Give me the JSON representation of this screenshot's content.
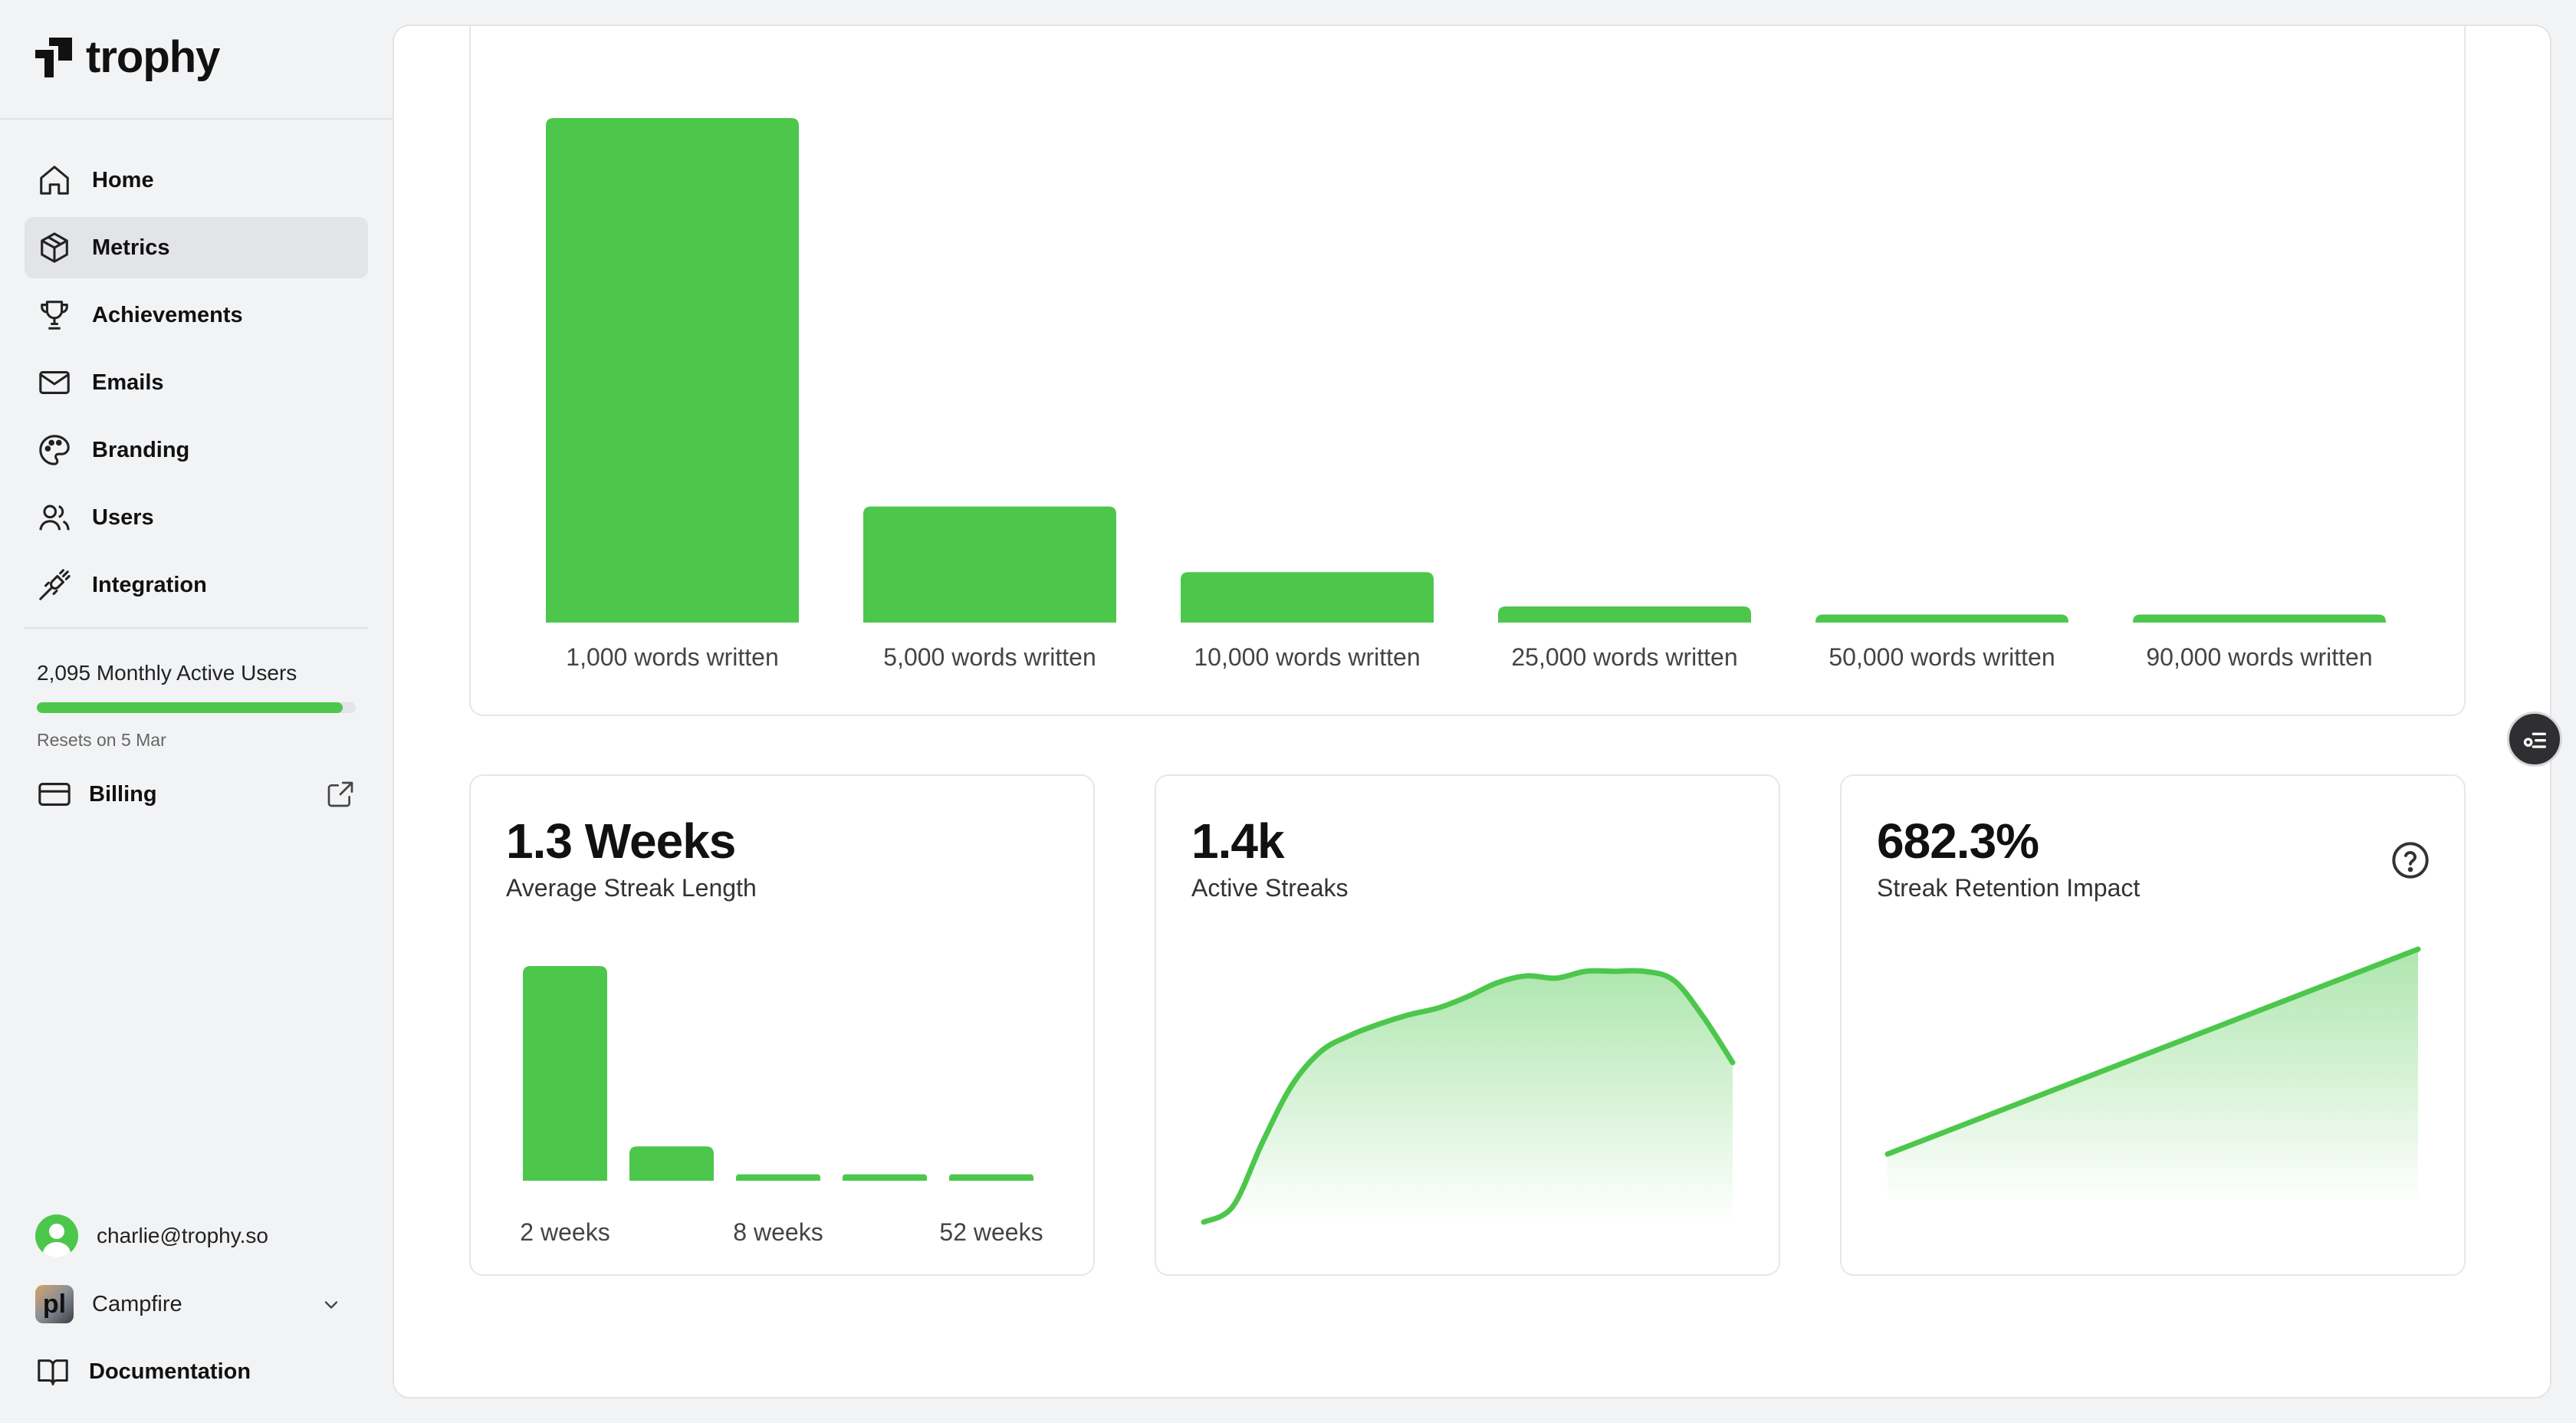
{
  "app": {
    "name": "trophy"
  },
  "sidebar": {
    "items": [
      {
        "label": "Home",
        "icon": "home-icon"
      },
      {
        "label": "Metrics",
        "icon": "cube-icon",
        "active": true
      },
      {
        "label": "Achievements",
        "icon": "trophy-icon"
      },
      {
        "label": "Emails",
        "icon": "mail-icon"
      },
      {
        "label": "Branding",
        "icon": "palette-icon"
      },
      {
        "label": "Users",
        "icon": "users-icon"
      },
      {
        "label": "Integration",
        "icon": "plug-icon"
      }
    ],
    "usage": {
      "label": "2,095 Monthly Active Users",
      "progress_fraction": 0.96,
      "resets": "Resets on 5 Mar"
    },
    "billing": {
      "label": "Billing"
    },
    "user": {
      "email": "charlie@trophy.so"
    },
    "org": {
      "name": "Campfire",
      "logo_text": "pl"
    },
    "docs": {
      "label": "Documentation"
    }
  },
  "colors": {
    "accent": "#4cc74c",
    "text": "#111111",
    "muted": "#666666"
  },
  "achievements_chart": {
    "chart_data": {
      "type": "bar",
      "categories": [
        "1,000 words written",
        "5,000 words written",
        "10,000 words written",
        "25,000 words written",
        "50,000 words written",
        "90,000 words written"
      ],
      "values": [
        100,
        23,
        10,
        3.2,
        1.6,
        1.6
      ],
      "color": "#4cc74c"
    }
  },
  "stats": [
    {
      "value": "1.3 Weeks",
      "label": "Average Streak Length",
      "chart_data": {
        "type": "bar",
        "categories": [
          "2 weeks",
          "",
          "8 weeks",
          "",
          "52 weeks"
        ],
        "values": [
          100,
          16,
          3,
          3,
          3
        ],
        "color": "#4cc74c"
      }
    },
    {
      "value": "1.4k",
      "label": "Active Streaks",
      "chart_data": {
        "type": "area",
        "x": [
          0,
          1,
          2,
          3,
          4,
          5,
          6,
          7,
          8,
          9,
          10,
          11,
          12,
          13,
          14,
          15,
          16,
          17,
          18
        ],
        "values": [
          0,
          7,
          35,
          60,
          75,
          82,
          87,
          91,
          94,
          99,
          105,
          108,
          107,
          110,
          110,
          110,
          106,
          90,
          70
        ],
        "ylim": [
          0,
          115
        ],
        "color": "#4cc74c"
      }
    },
    {
      "value": "682.3%",
      "label": "Streak Retention Impact",
      "has_help": true,
      "chart_data": {
        "type": "area",
        "x": [
          0,
          1
        ],
        "values": [
          0,
          100
        ],
        "ylim": [
          -10,
          100
        ],
        "color": "#4cc74c"
      }
    }
  ]
}
